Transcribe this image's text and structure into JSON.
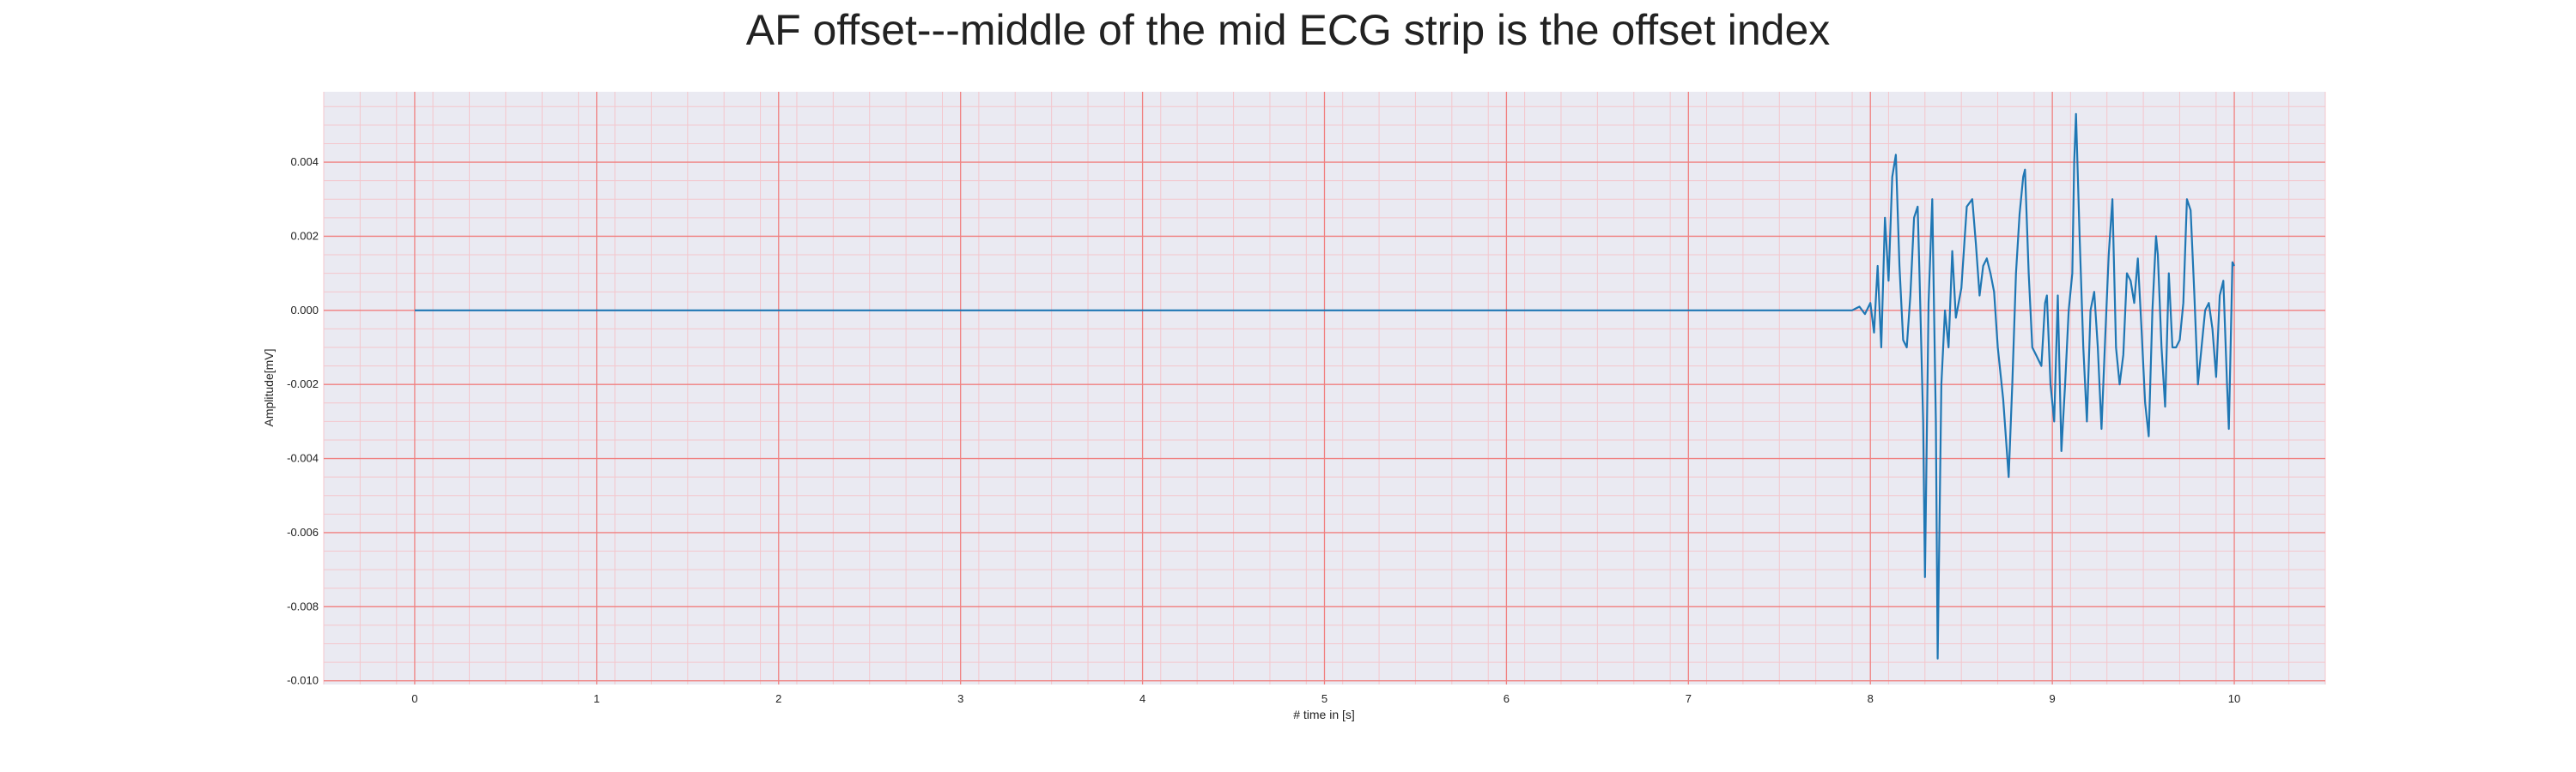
{
  "chart_data": {
    "type": "line",
    "title": "AF offset---middle of the mid ECG strip is the offset index",
    "xlabel": "# time in [s]",
    "ylabel": "Amplitude[mV]",
    "xlim": [
      -0.5,
      10.5
    ],
    "ylim": [
      -0.0101,
      0.0059
    ],
    "xticks": [
      0,
      1,
      2,
      3,
      4,
      5,
      6,
      7,
      8,
      9,
      10
    ],
    "xtick_labels": [
      "0",
      "1",
      "2",
      "3",
      "4",
      "5",
      "6",
      "7",
      "8",
      "9",
      "10"
    ],
    "yticks": [
      0.004,
      0.002,
      0.0,
      -0.002,
      -0.004,
      -0.006,
      -0.008,
      -0.01
    ],
    "ytick_labels": [
      "0.004",
      "0.002",
      "0.000",
      "-0.002",
      "-0.004",
      "-0.006",
      "-0.008",
      "-0.010"
    ],
    "grid": true,
    "minor_grid": true,
    "colors": {
      "background": "#eaeaf2",
      "major_grid": "#f08080",
      "minor_grid": "#f4c6cc",
      "line": "#1f77b4"
    },
    "series": [
      {
        "points": [
          [
            0.0,
            0.0
          ],
          [
            0.9,
            0.0
          ],
          [
            1.8,
            0.0
          ],
          [
            2.7,
            0.0
          ],
          [
            3.6,
            0.0
          ],
          [
            4.5,
            0.0
          ],
          [
            5.4,
            0.0
          ],
          [
            6.3,
            0.0
          ],
          [
            7.2,
            0.0
          ],
          [
            7.9,
            0.0
          ],
          [
            7.94,
            0.0001
          ],
          [
            7.97,
            -0.0001
          ],
          [
            8.0,
            0.0002
          ],
          [
            8.02,
            -0.0006
          ],
          [
            8.04,
            0.0012
          ],
          [
            8.06,
            -0.001
          ],
          [
            8.08,
            0.0025
          ],
          [
            8.1,
            0.0008
          ],
          [
            8.12,
            0.0036
          ],
          [
            8.14,
            0.0042
          ],
          [
            8.16,
            0.0012
          ],
          [
            8.18,
            -0.0008
          ],
          [
            8.2,
            -0.001
          ],
          [
            8.22,
            0.0004
          ],
          [
            8.24,
            0.0025
          ],
          [
            8.26,
            0.0028
          ],
          [
            8.27,
            0.001
          ],
          [
            8.29,
            -0.003
          ],
          [
            8.3,
            -0.0072
          ],
          [
            8.32,
            0.0002
          ],
          [
            8.34,
            0.003
          ],
          [
            8.36,
            -0.003
          ],
          [
            8.37,
            -0.0094
          ],
          [
            8.39,
            -0.002
          ],
          [
            8.41,
            0.0
          ],
          [
            8.43,
            -0.001
          ],
          [
            8.45,
            0.0016
          ],
          [
            8.47,
            -0.0002
          ],
          [
            8.5,
            0.0006
          ],
          [
            8.53,
            0.0028
          ],
          [
            8.56,
            0.003
          ],
          [
            8.58,
            0.0018
          ],
          [
            8.6,
            0.0004
          ],
          [
            8.62,
            0.0012
          ],
          [
            8.64,
            0.0014
          ],
          [
            8.66,
            0.001
          ],
          [
            8.68,
            0.0005
          ],
          [
            8.7,
            -0.001
          ],
          [
            8.73,
            -0.0024
          ],
          [
            8.76,
            -0.0045
          ],
          [
            8.78,
            -0.002
          ],
          [
            8.8,
            0.001
          ],
          [
            8.82,
            0.0026
          ],
          [
            8.84,
            0.0036
          ],
          [
            8.85,
            0.0038
          ],
          [
            8.87,
            0.001
          ],
          [
            8.89,
            -0.001
          ],
          [
            8.91,
            -0.0012
          ],
          [
            8.94,
            -0.0015
          ],
          [
            8.96,
            0.0002
          ],
          [
            8.97,
            0.0004
          ],
          [
            8.99,
            -0.002
          ],
          [
            9.01,
            -0.003
          ],
          [
            9.03,
            0.0004
          ],
          [
            9.05,
            -0.0038
          ],
          [
            9.07,
            -0.002
          ],
          [
            9.09,
            0.0
          ],
          [
            9.11,
            0.001
          ],
          [
            9.12,
            0.004
          ],
          [
            9.13,
            0.0053
          ],
          [
            9.15,
            0.002
          ],
          [
            9.17,
            -0.001
          ],
          [
            9.19,
            -0.003
          ],
          [
            9.21,
            0.0
          ],
          [
            9.23,
            0.0005
          ],
          [
            9.25,
            -0.001
          ],
          [
            9.27,
            -0.0032
          ],
          [
            9.29,
            -0.0008
          ],
          [
            9.31,
            0.0015
          ],
          [
            9.33,
            0.003
          ],
          [
            9.35,
            -0.001
          ],
          [
            9.37,
            -0.002
          ],
          [
            9.39,
            -0.0012
          ],
          [
            9.41,
            0.001
          ],
          [
            9.43,
            0.0008
          ],
          [
            9.45,
            0.0002
          ],
          [
            9.47,
            0.0014
          ],
          [
            9.49,
            -0.0005
          ],
          [
            9.51,
            -0.0025
          ],
          [
            9.53,
            -0.0034
          ],
          [
            9.55,
            0.0
          ],
          [
            9.57,
            0.002
          ],
          [
            9.58,
            0.0015
          ],
          [
            9.6,
            -0.001
          ],
          [
            9.62,
            -0.0026
          ],
          [
            9.64,
            0.001
          ],
          [
            9.66,
            -0.001
          ],
          [
            9.68,
            -0.001
          ],
          [
            9.7,
            -0.0008
          ],
          [
            9.72,
            0.0002
          ],
          [
            9.74,
            0.003
          ],
          [
            9.76,
            0.0027
          ],
          [
            9.78,
            0.0005
          ],
          [
            9.8,
            -0.002
          ],
          [
            9.82,
            -0.001
          ],
          [
            9.84,
            0.0
          ],
          [
            9.86,
            0.0002
          ],
          [
            9.88,
            -0.0005
          ],
          [
            9.9,
            -0.0018
          ],
          [
            9.92,
            0.0004
          ],
          [
            9.94,
            0.0008
          ],
          [
            9.96,
            -0.002
          ],
          [
            9.97,
            -0.0032
          ],
          [
            9.99,
            0.0013
          ],
          [
            10.0,
            0.0012
          ]
        ]
      }
    ]
  }
}
